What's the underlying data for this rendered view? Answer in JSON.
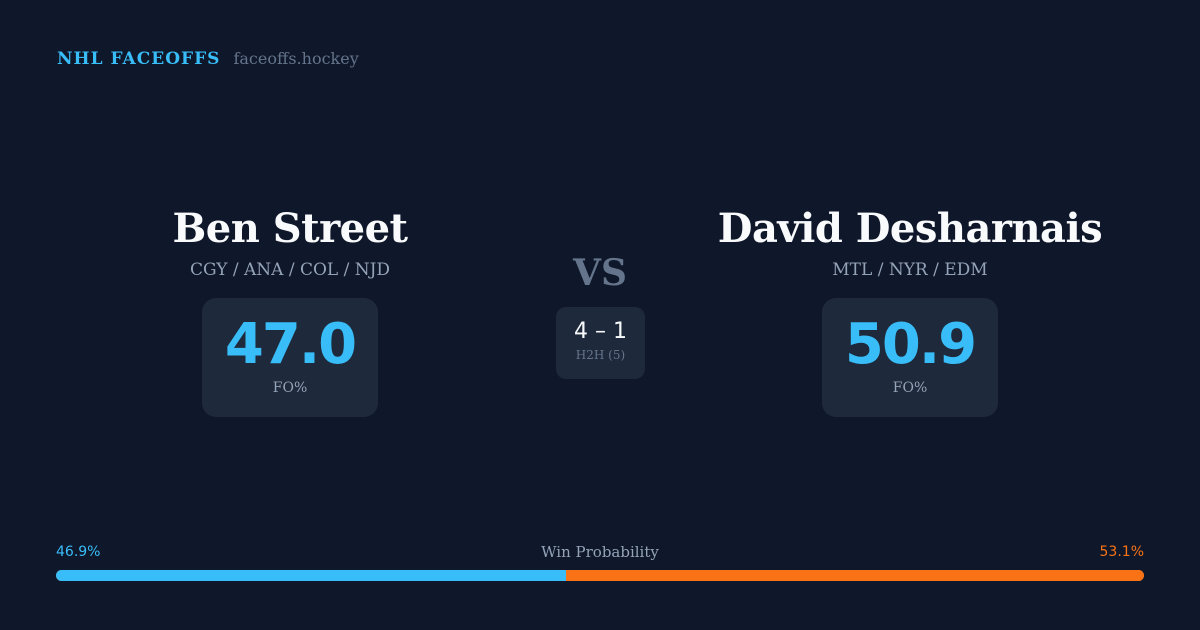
{
  "brand": {
    "name": "NHL FACEOFFS",
    "url": "faceoffs.hockey"
  },
  "player1": {
    "name": "Ben Street",
    "teams": "CGY / ANA / COL / NJD",
    "fo_pct": "47.0",
    "fo_label": "FO%"
  },
  "player2": {
    "name": "David Desharnais",
    "teams": "MTL / NYR / EDM",
    "fo_pct": "50.9",
    "fo_label": "FO%"
  },
  "vs": "VS",
  "h2h": {
    "score": "4 – 1",
    "label": "H2H (5)"
  },
  "win_probability": {
    "title": "Win Probability",
    "left": "46.9%",
    "right": "53.1%",
    "left_value": 46.9,
    "right_value": 53.1,
    "left_color": "#38bdf8",
    "right_color": "#f97316"
  }
}
